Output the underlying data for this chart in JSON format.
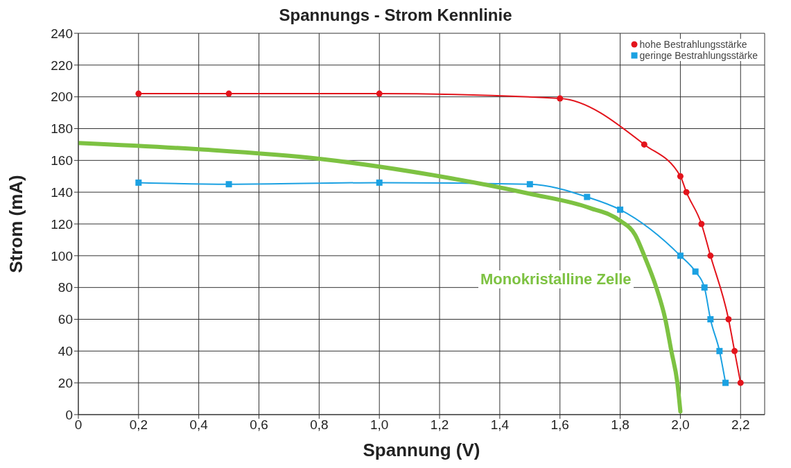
{
  "chart_data": {
    "type": "line",
    "title": "Spannungs - Strom Kennlinie",
    "xlabel": "Spannung (V)",
    "ylabel": "Strom (mA)",
    "xlim": [
      0,
      2.28
    ],
    "xticks": [
      {
        "value": 0,
        "label": "0"
      },
      {
        "value": 0.2,
        "label": "0,2"
      },
      {
        "value": 0.4,
        "label": "0,4"
      },
      {
        "value": 0.6,
        "label": "0,6"
      },
      {
        "value": 0.8,
        "label": "0,8"
      },
      {
        "value": 1.0,
        "label": "1,0"
      },
      {
        "value": 1.2,
        "label": "1,2"
      },
      {
        "value": 1.4,
        "label": "1,4"
      },
      {
        "value": 1.6,
        "label": "1,6"
      },
      {
        "value": 1.8,
        "label": "1,8"
      },
      {
        "value": 2.0,
        "label": "2,0"
      },
      {
        "value": 2.2,
        "label": "2,2"
      }
    ],
    "ylim": [
      0,
      240
    ],
    "yticks": [
      0,
      20,
      40,
      60,
      80,
      100,
      120,
      140,
      160,
      180,
      200,
      220,
      240
    ],
    "grid": true,
    "legend": "top right",
    "series": [
      {
        "name": "hohe Bestrahlungsstärke",
        "color": "#e3141c",
        "marker": "circle",
        "x": [
          0.2,
          0.5,
          1.0,
          1.6,
          1.88,
          2.0,
          2.02,
          2.07,
          2.1,
          2.16,
          2.18,
          2.2
        ],
        "values": [
          202,
          202,
          202,
          199,
          170,
          150,
          140,
          120,
          100,
          60,
          40,
          20
        ]
      },
      {
        "name": "geringe Bestrahlungsstärke",
        "color": "#1ba1e2",
        "marker": "square",
        "x": [
          0.2,
          0.5,
          1.0,
          1.5,
          1.69,
          1.8,
          2.0,
          2.05,
          2.08,
          2.1,
          2.13,
          2.15
        ],
        "values": [
          146,
          145,
          146,
          145,
          137,
          129,
          100,
          90,
          80,
          60,
          40,
          20
        ]
      },
      {
        "color": "#7dc242",
        "marker": "none",
        "x": [
          0,
          0.4,
          0.8,
          1.2,
          1.5,
          1.7,
          1.8,
          1.85,
          1.88,
          1.92,
          1.95,
          1.97,
          1.99,
          2.0
        ],
        "values": [
          171,
          167,
          161,
          150,
          139,
          130,
          122,
          113,
          100,
          80,
          60,
          40,
          20,
          2
        ]
      }
    ],
    "annotations": [
      "Monokristalline Zelle"
    ]
  }
}
